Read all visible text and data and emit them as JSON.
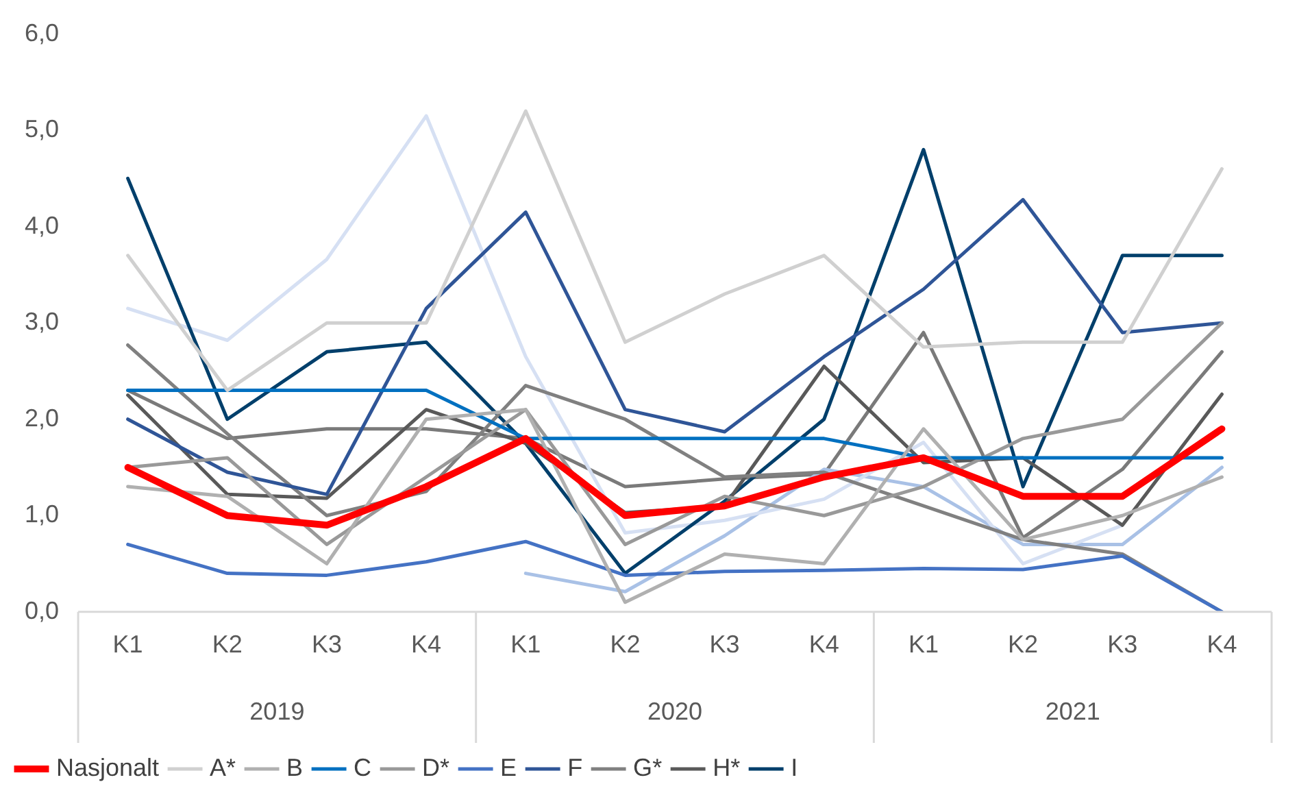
{
  "chart_data": {
    "type": "line",
    "categories": [
      "K1",
      "K2",
      "K3",
      "K4",
      "K1",
      "K2",
      "K3",
      "K4",
      "K1",
      "K2",
      "K3",
      "K4"
    ],
    "annotations": [
      "2019",
      "2020",
      "2021"
    ],
    "ylim": [
      0,
      6
    ],
    "yticks": [
      {
        "value": 0,
        "label": "0,0"
      },
      {
        "value": 1,
        "label": "1,0"
      },
      {
        "value": 2,
        "label": "2,0"
      },
      {
        "value": 3,
        "label": "3,0"
      },
      {
        "value": 4,
        "label": "4,0"
      },
      {
        "value": 5,
        "label": "5,0"
      },
      {
        "value": 6,
        "label": "6,0"
      }
    ],
    "grid": false,
    "legend": "bottom",
    "marker": "none",
    "line_style": "solid",
    "series": [
      {
        "name": "Nasjonalt",
        "color": "#ff0000",
        "values": [
          1.5,
          1.0,
          0.9,
          1.3,
          1.8,
          1.0,
          1.1,
          1.4,
          1.6,
          1.2,
          1.2,
          1.9
        ]
      },
      {
        "name": "A*",
        "color": "#d0d0d0",
        "values": [
          3.7,
          2.3,
          3.0,
          3.0,
          5.2,
          2.8,
          3.3,
          3.7,
          2.75,
          2.8,
          2.8,
          4.6
        ]
      },
      {
        "name": "B",
        "color": "#b0b0b0",
        "values": [
          1.3,
          1.2,
          0.5,
          2.0,
          2.1,
          0.1,
          0.6,
          0.5,
          1.9,
          0.75,
          1.0,
          1.4
        ]
      },
      {
        "name": "C",
        "color": "#0070c0",
        "values": [
          2.3,
          2.3,
          2.3,
          2.3,
          1.8,
          1.8,
          1.8,
          1.8,
          1.6,
          1.6,
          1.6,
          1.6
        ]
      },
      {
        "name": "D*",
        "color": "#999999",
        "values": [
          1.5,
          1.6,
          0.7,
          1.4,
          2.1,
          0.7,
          1.2,
          1.0,
          1.3,
          1.8,
          2.0,
          3.0
        ]
      },
      {
        "name": "E",
        "color": "#4472c4",
        "values": [
          0.7,
          0.4,
          0.38,
          0.52,
          0.73,
          0.38,
          0.42,
          0.43,
          0.45,
          0.44,
          0.58,
          0.0
        ]
      },
      {
        "name": "F",
        "color": "#2f5597",
        "values": [
          2.0,
          1.45,
          1.22,
          3.15,
          4.15,
          2.1,
          1.87,
          2.65,
          3.35,
          4.28,
          2.9,
          3.0
        ]
      },
      {
        "name": "G*",
        "color": "#808080",
        "values": [
          2.77,
          1.85,
          1.0,
          1.25,
          2.35,
          2.0,
          1.4,
          1.45,
          1.1,
          0.75,
          0.6,
          0.0
        ]
      },
      {
        "name": "H*",
        "color": "#595959",
        "values": [
          2.25,
          1.22,
          1.18,
          2.1,
          1.75,
          1.03,
          1.1,
          2.55,
          1.55,
          1.6,
          0.9,
          2.26
        ]
      },
      {
        "name": "I",
        "color": "#003f6b",
        "values": [
          4.5,
          2.0,
          2.7,
          2.8,
          1.75,
          0.4,
          1.15,
          2.0,
          4.8,
          1.3,
          3.7,
          3.7
        ]
      },
      {
        "color": "#d6e0f3",
        "values": [
          3.15,
          2.82,
          3.66,
          5.15,
          2.65,
          0.82,
          0.95,
          1.17,
          1.76,
          0.5,
          0.9,
          null
        ]
      },
      {
        "color": "#a9c1e6",
        "values": [
          null,
          null,
          null,
          null,
          0.4,
          0.21,
          0.79,
          1.48,
          1.3,
          0.7,
          0.7,
          1.5
        ]
      },
      {
        "color": "#7a7a7a",
        "values": [
          2.3,
          1.8,
          1.9,
          1.9,
          1.8,
          1.3,
          1.38,
          1.43,
          2.9,
          0.77,
          1.48,
          2.7
        ]
      }
    ]
  }
}
